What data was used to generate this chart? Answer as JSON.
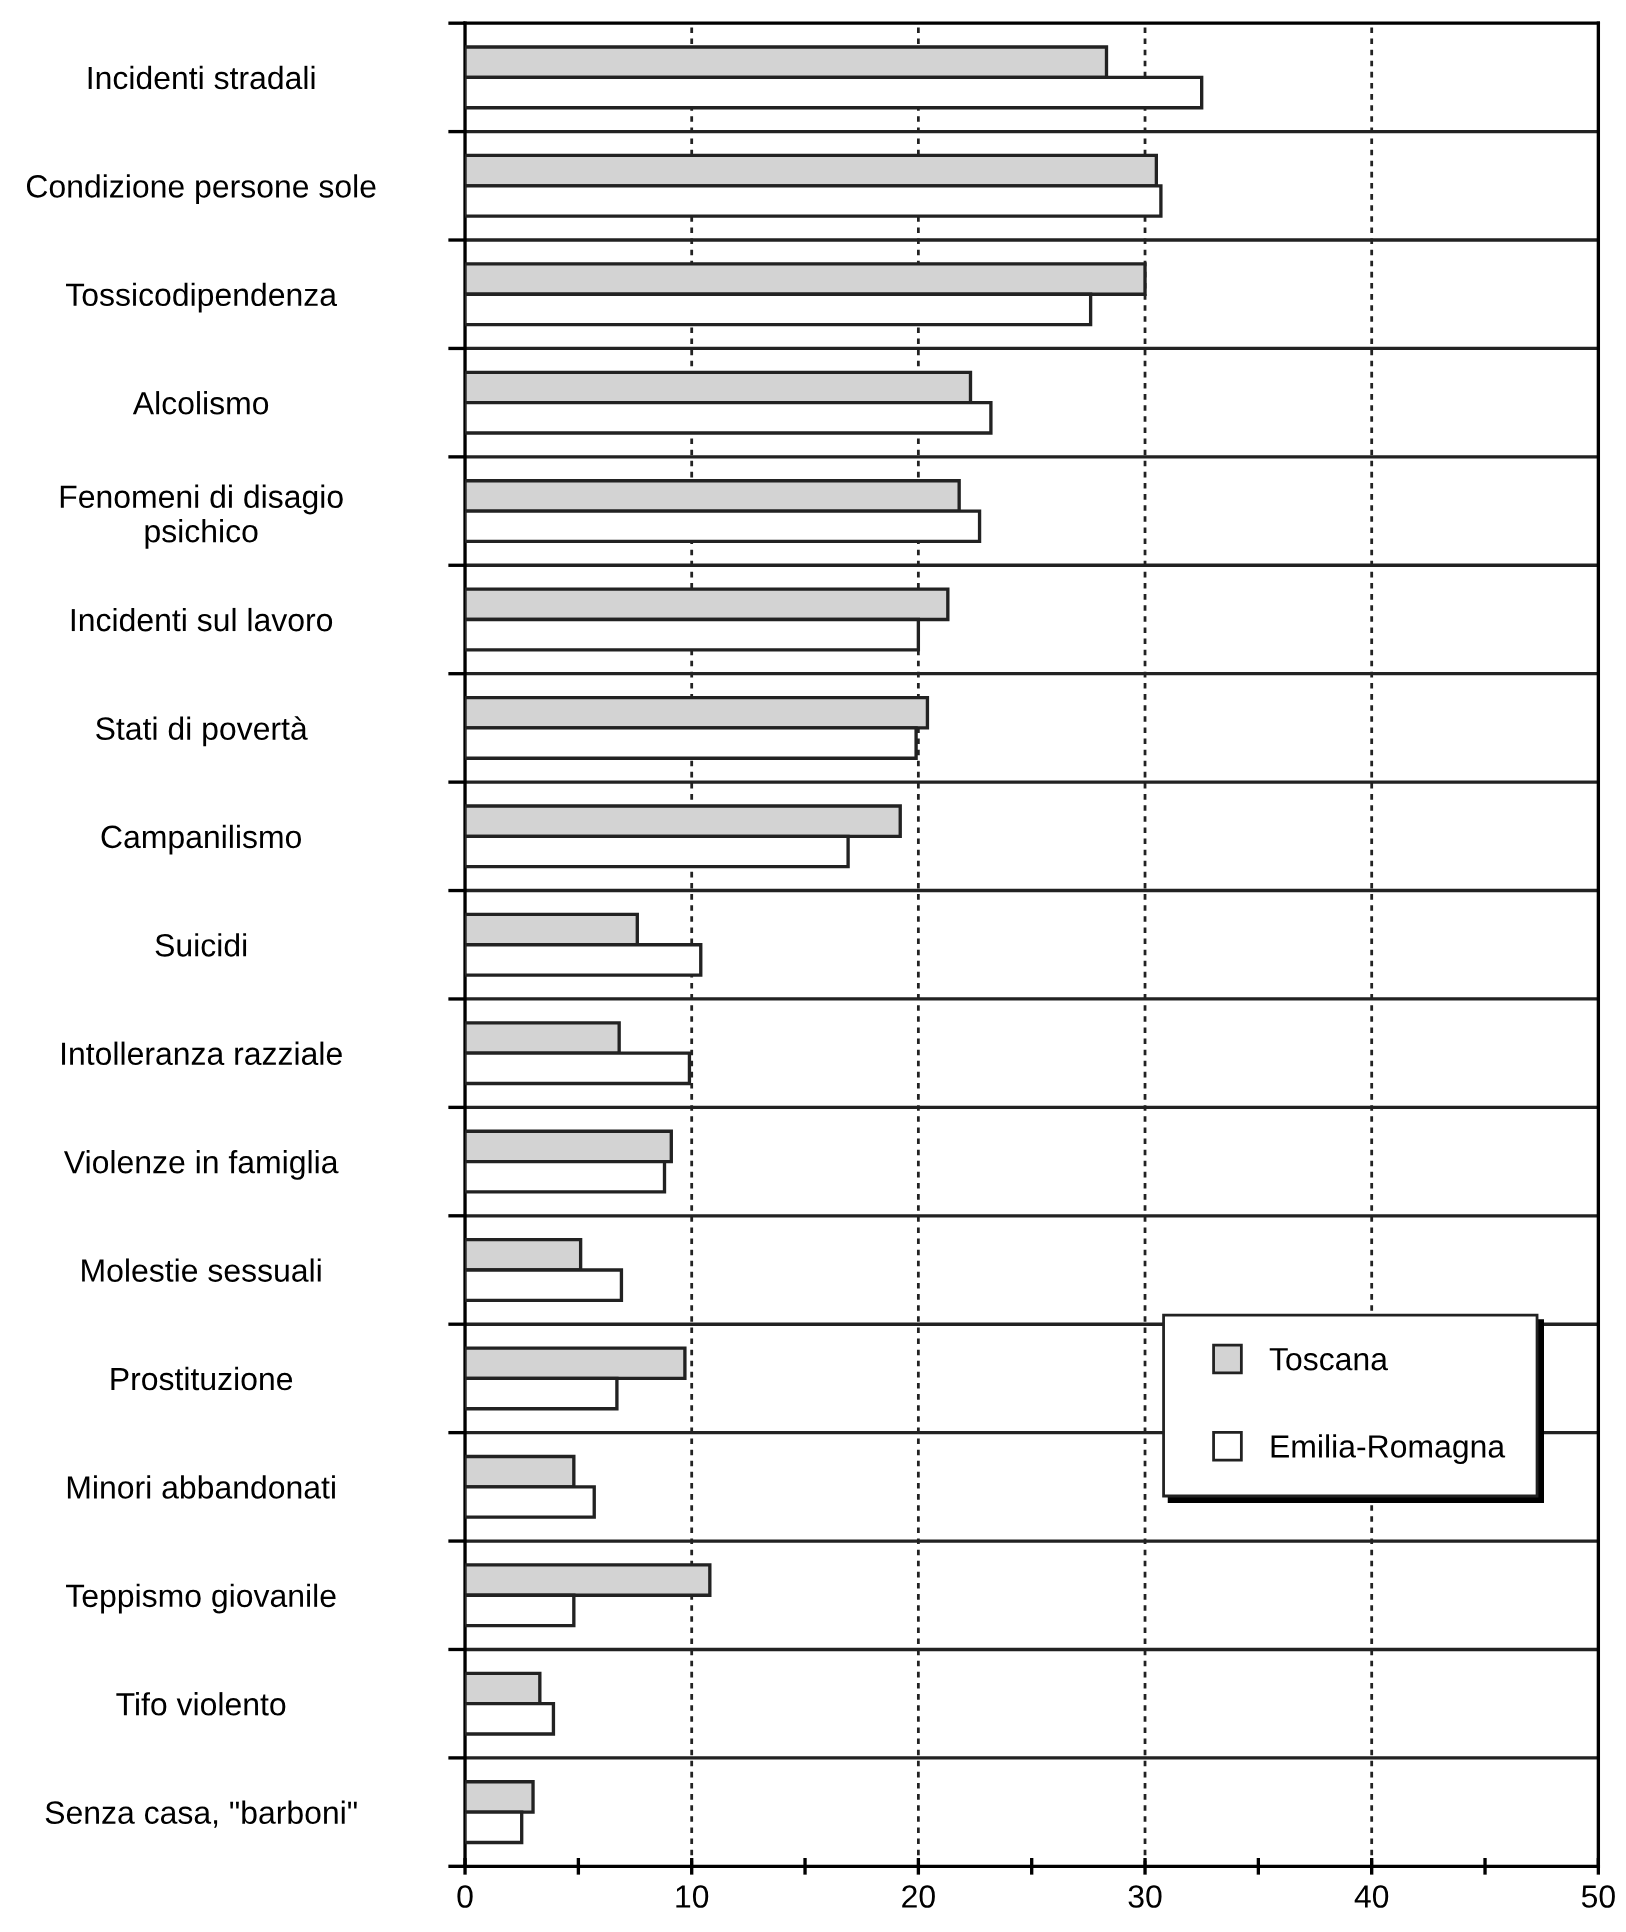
{
  "chart_data": {
    "type": "bar",
    "orientation": "horizontal",
    "categories": [
      "Incidenti stradali",
      "Condizione persone sole",
      "Tossicodipendenza",
      "Alcolismo",
      "Fenomeni di disagio\npsichico",
      "Incidenti sul lavoro",
      "Stati di povertà",
      "Campanilismo",
      "Suicidi",
      "Intolleranza razziale",
      "Violenze in famiglia",
      "Molestie sessuali",
      "Prostituzione",
      "Minori abbandonati",
      "Teppismo giovanile",
      "Tifo violento",
      "Senza casa, \"barboni\""
    ],
    "series": [
      {
        "name": "Toscana",
        "color": "#d3d3d3",
        "values": [
          28.3,
          30.5,
          30.0,
          22.3,
          21.8,
          21.3,
          20.4,
          19.2,
          7.6,
          6.8,
          9.1,
          5.1,
          9.7,
          4.8,
          10.8,
          3.3,
          3.0
        ]
      },
      {
        "name": "Emilia-Romagna",
        "color": "#ffffff",
        "values": [
          32.5,
          30.7,
          27.6,
          23.2,
          22.7,
          20.0,
          19.9,
          16.9,
          10.4,
          9.9,
          8.8,
          6.9,
          6.7,
          5.7,
          4.8,
          3.9,
          2.5
        ]
      }
    ],
    "xlim": [
      0,
      50
    ],
    "xticks": [
      0,
      {
        "value": 5,
        "label": null
      },
      10,
      {
        "value": 15,
        "label": null
      },
      20,
      {
        "value": 25,
        "label": null
      },
      30,
      {
        "value": 35,
        "label": null
      },
      40,
      {
        "value": 45,
        "label": null
      },
      50
    ],
    "grid": true,
    "legend": "right"
  }
}
